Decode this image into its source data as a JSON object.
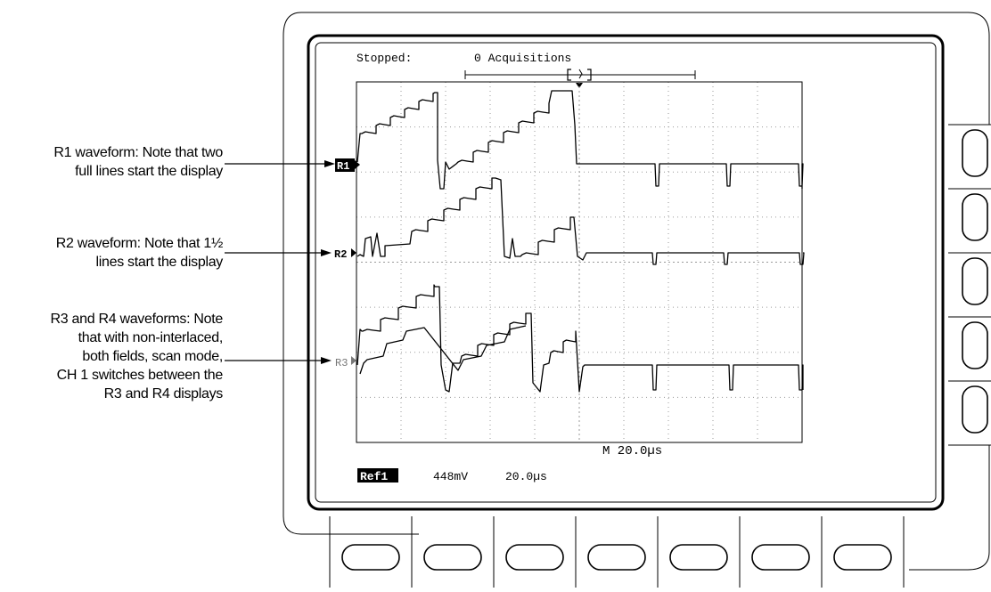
{
  "annotations": [
    {
      "id": "r1",
      "lines": [
        "R1 waveform: Note that two",
        "full lines start the display"
      ]
    },
    {
      "id": "r2",
      "lines": [
        "R2 waveform: Note that 1½",
        "lines start the display"
      ]
    },
    {
      "id": "r3",
      "lines": [
        "R3 and R4 waveforms: Note",
        "that with non-interlaced,",
        "both fields, scan mode,",
        "CH 1 switches between the",
        "R3 and R4 displays"
      ]
    }
  ],
  "screen": {
    "status_label": "Stopped:",
    "acquisitions": "0 Acquisitions",
    "timebase_readout": "M 20.0µs",
    "ref_label": "Ref1",
    "ref_volts": "448mV",
    "ref_time": "20.0µs"
  },
  "channel_markers": [
    {
      "label": "R1",
      "highlighted": true
    },
    {
      "label": "R2",
      "highlighted": false
    },
    {
      "label": "R3",
      "highlighted": false
    }
  ],
  "colors": {
    "ink": "#000000",
    "grid": "#9a9a9a",
    "bezel": "#ffffff"
  },
  "bezel": {
    "side_buttons": 5,
    "bottom_buttons": 7
  }
}
